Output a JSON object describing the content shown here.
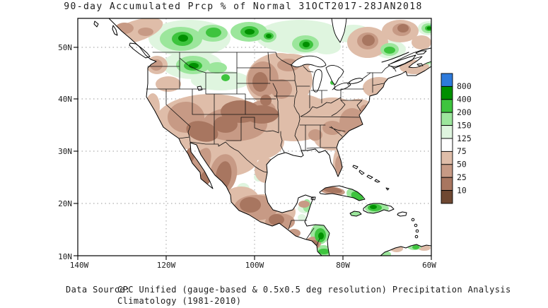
{
  "title": "90-day Accumulated Prcp % of Normal 31OCT2017-28JAN2018",
  "axes": {
    "lat": [
      "50N",
      "40N",
      "30N",
      "20N",
      "10N"
    ],
    "lon": [
      "140W",
      "120W",
      "100W",
      "80W",
      "60W"
    ]
  },
  "legend": {
    "labels": [
      "800",
      "400",
      "200",
      "150",
      "125",
      "75",
      "50",
      "25",
      "10"
    ],
    "order": [
      "blue",
      "g400",
      "g200",
      "g150",
      "g125",
      "white",
      "b75",
      "b50",
      "b25",
      "b10"
    ],
    "colors": {
      "blue": "#2E7BDC",
      "g400": "#009000",
      "g200": "#3EC43E",
      "g150": "#9CE69C",
      "g125": "#DFF5DF",
      "white": "#FFFFFF",
      "b75": "#DFBDA9",
      "b50": "#C79A85",
      "b25": "#A87660",
      "b10": "#6F4832"
    }
  },
  "footer": {
    "label": "Data Source:",
    "label_color": "#DD4B4B",
    "line1": "CPC Unified (gauge-based & 0.5x0.5 deg resolution) Precipitation Analysis",
    "line2": "Climatology (1981-2010)"
  }
}
